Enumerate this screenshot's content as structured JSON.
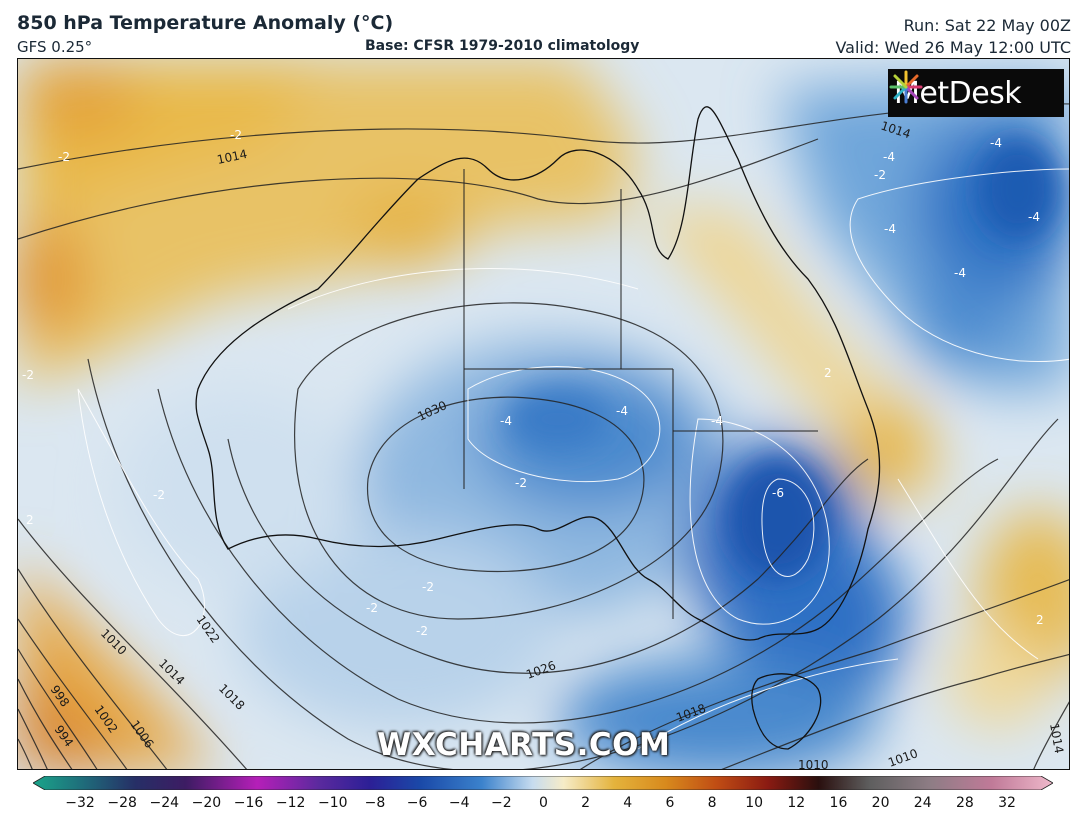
{
  "header": {
    "title": "850 hPa Temperature Anomaly (°C)",
    "model": "GFS 0.25°",
    "base": "Base: CFSR 1979-2010 climatology",
    "run": "Run: Sat 22 May 00Z",
    "valid": "Valid: Wed 26 May 12:00 UTC"
  },
  "logo": {
    "text": "MetDesk",
    "icon": "starburst-logo-icon"
  },
  "watermark": "WXCHARTS.COM",
  "isobar_labels": [
    "1014",
    "1014",
    "1030",
    "1026",
    "1022",
    "1018",
    "1014",
    "1010",
    "1006",
    "1002",
    "998",
    "994",
    "1018",
    "1014",
    "1010",
    "1010"
  ],
  "anomaly_labels": [
    "-2",
    "-2",
    "-2",
    "-4",
    "-4",
    "-4",
    "-4",
    "-4",
    "-4",
    "-4",
    "-4",
    "-6",
    "-2",
    "-2",
    "-2",
    "-2",
    "-2",
    "2",
    "2",
    "2",
    "-2"
  ],
  "colorbar": {
    "ticks": [
      "−32",
      "−28",
      "−24",
      "−20",
      "−16",
      "−12",
      "−10",
      "−8",
      "−6",
      "−4",
      "−2",
      "0",
      "2",
      "4",
      "6",
      "8",
      "10",
      "12",
      "16",
      "20",
      "24",
      "28",
      "32"
    ],
    "colors": [
      "#1aa58a",
      "#1f6b7a",
      "#262f66",
      "#3d1c63",
      "#7a1a84",
      "#b51fb8",
      "#5b2a9e",
      "#2c1f96",
      "#1a49a8",
      "#2c74c6",
      "#6aa3d9",
      "#c7dcef",
      "#f1e0a6",
      "#e4b33c",
      "#d88a1d",
      "#c04d14",
      "#8b1b12",
      "#4a1210",
      "#5e5e5e",
      "#8e7d85",
      "#b36a8a",
      "#d98aa8",
      "#efb9cb"
    ]
  }
}
